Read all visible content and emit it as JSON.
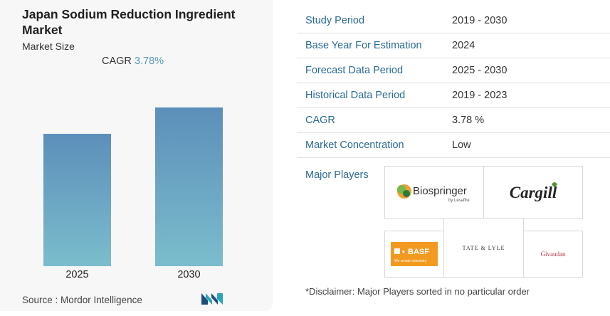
{
  "left": {
    "title": "Japan Sodium Reduction Ingredient Market",
    "subtitle": "Market Size",
    "cagr_label": "CAGR",
    "cagr_value": "3.78%",
    "source": "Source :  Mordor Intelligence",
    "source_logo_icon": "mordor-intelligence-logo-icon"
  },
  "chart_data": {
    "type": "bar",
    "categories": [
      "2025",
      "2030"
    ],
    "values": [
      1.0,
      1.2
    ],
    "title": "",
    "xlabel": "",
    "ylabel": "",
    "ylim": [
      0,
      1.2
    ],
    "grid": false,
    "colors": {
      "bar_top": "#5c8fba",
      "bar_bottom": "#7bbdcc"
    }
  },
  "info_table": [
    {
      "key": "Study Period",
      "value": "2019 - 2030"
    },
    {
      "key": "Base Year For Estimation",
      "value": "2024"
    },
    {
      "key": "Forecast Data Period",
      "value": "2025 - 2030"
    },
    {
      "key": "Historical Data Period",
      "value": "2019 - 2023"
    },
    {
      "key": "CAGR",
      "value": "3.78 %"
    },
    {
      "key": "Market Concentration",
      "value": "Low"
    }
  ],
  "players": {
    "label": "Major Players",
    "logos": [
      {
        "name": "Biospringer",
        "sub": "by Lesaffre"
      },
      {
        "name": "Cargill"
      },
      {
        "name": "BASF",
        "sub": "We create chemistry"
      },
      {
        "name": "TATE & LYLE"
      },
      {
        "name": "Givaudan"
      }
    ],
    "disclaimer": "*Disclaimer: Major Players sorted in no particular order"
  },
  "colors": {
    "accent": "#2a6b96",
    "cagr": "#5b9bb8",
    "panel": "#f7f7f7"
  }
}
